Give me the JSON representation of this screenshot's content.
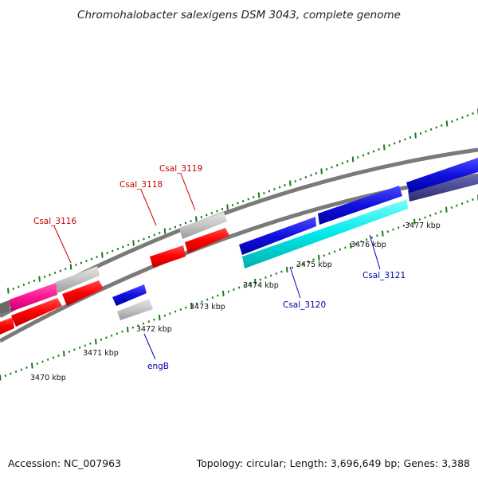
{
  "title": "Chromohalobacter salexigens DSM 3043, complete genome",
  "footer": {
    "accession": "Accession: NC_007963",
    "summary": "Topology: circular; Length: 3,696,649 bp; Genes: 3,388"
  },
  "ticks": {
    "t3470": "3470 kbp",
    "t3471": "3471 kbp",
    "t3472": "3472 kbp",
    "t3473": "3473 kbp",
    "t3474": "3474 kbp",
    "t3475": "3475 kbp",
    "t3476": "3476 kbp",
    "t3477": "3477 kbp"
  },
  "genes": {
    "csal_3116": "Csal_3116",
    "csal_3118": "Csal_3118",
    "csal_3119": "Csal_3119",
    "csal_3120": "Csal_3120",
    "csal_3121": "Csal_3121",
    "engb": "engB"
  },
  "colors": {
    "forward_label": "#c40000",
    "reverse_label": "#0000b0",
    "red_gene": "#ff0000",
    "blue_gene": "#1010e0",
    "cyan_gene": "#00e8e8",
    "gray_gene": "#c0c0c0",
    "pink_gene": "#ff1493",
    "backbone": "#7a7a7a",
    "tick_green": "#1a7a1a"
  }
}
